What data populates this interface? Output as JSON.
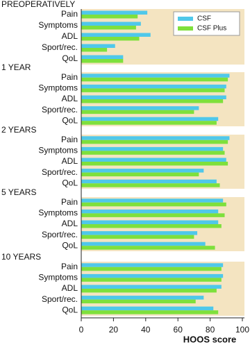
{
  "chart_data": {
    "type": "bar",
    "orientation": "horizontal",
    "categories": [
      "Pain",
      "Symptoms",
      "ADL",
      "Sport/rec.",
      "QoL"
    ],
    "series": [
      {
        "name": "CSF",
        "color": "#4fc8ea"
      },
      {
        "name": "CSF Plus",
        "color": "#7ee03c"
      }
    ],
    "groups": [
      {
        "title": "PREOPERATIVELY",
        "values": [
          [
            41,
            37,
            43,
            21,
            26
          ],
          [
            35,
            34,
            36,
            16,
            26
          ]
        ]
      },
      {
        "title": "1 YEAR",
        "values": [
          [
            92,
            90,
            90,
            73,
            85
          ],
          [
            91,
            89,
            88,
            70,
            84
          ]
        ]
      },
      {
        "title": "2 YEARS",
        "values": [
          [
            92,
            88,
            90,
            76,
            84
          ],
          [
            91,
            89,
            91,
            73,
            86
          ]
        ]
      },
      {
        "title": "5 YEARS",
        "values": [
          [
            88,
            85,
            85,
            72,
            77
          ],
          [
            90,
            89,
            87,
            70,
            83
          ]
        ]
      },
      {
        "title": "10 YEARS",
        "values": [
          [
            88,
            88,
            87,
            76,
            82
          ],
          [
            87,
            87,
            84,
            71,
            85
          ]
        ]
      }
    ],
    "xlim": [
      0,
      100
    ],
    "xticks": [
      0,
      20,
      40,
      60,
      80,
      100
    ],
    "xlabel": "HOOS score",
    "background": "#f4e4c1"
  }
}
